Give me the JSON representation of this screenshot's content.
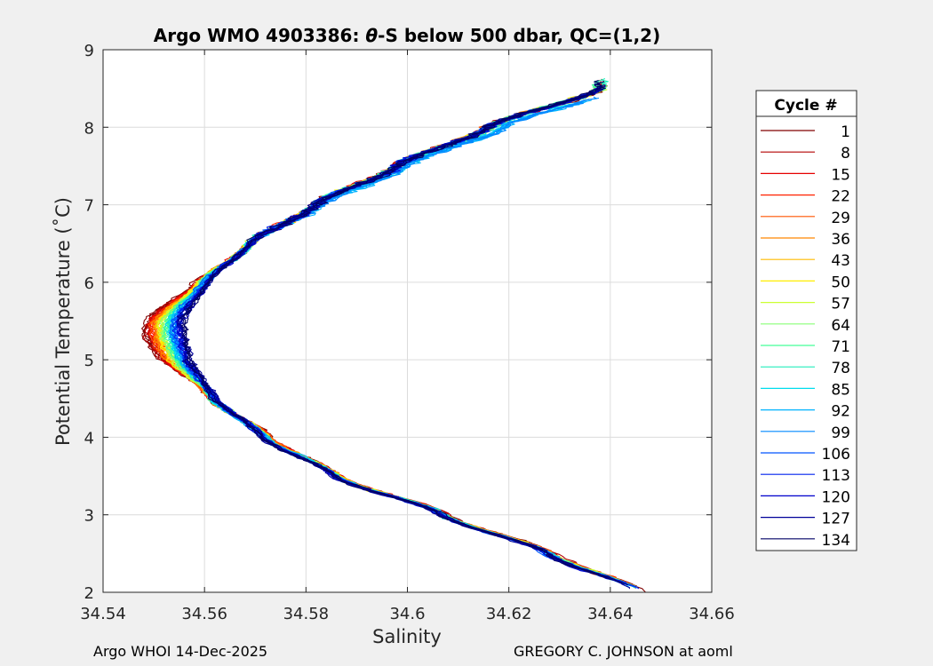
{
  "chart_data": {
    "type": "line",
    "title_prefix": "Argo WMO 4903386: ",
    "title_theta": "θ",
    "title_suffix": "-S below 500 dbar,  QC=(1,2)",
    "xlabel": "Salinity",
    "ylabel": "Potential Temperature (˚C)",
    "xlim": [
      34.54,
      34.66
    ],
    "ylim": [
      2,
      9
    ],
    "xticks": [
      34.54,
      34.56,
      34.58,
      34.6,
      34.62,
      34.64,
      34.66
    ],
    "xtick_labels": [
      "34.54",
      "34.56",
      "34.58",
      "34.6",
      "34.62",
      "34.64",
      "34.66"
    ],
    "yticks": [
      2,
      3,
      4,
      5,
      6,
      7,
      8,
      9
    ],
    "ytick_labels": [
      "2",
      "3",
      "4",
      "5",
      "6",
      "7",
      "8",
      "9"
    ],
    "grid": true,
    "legend": {
      "title": "Cycle #",
      "placement": "right-outside",
      "entries": [
        "1",
        "8",
        "15",
        "22",
        "29",
        "36",
        "43",
        "50",
        "57",
        "64",
        "71",
        "78",
        "85",
        "92",
        "99",
        "106",
        "113",
        "120",
        "127",
        "134"
      ],
      "colors": [
        "#800000",
        "#b30000",
        "#e60000",
        "#ff2200",
        "#ff5500",
        "#ff8800",
        "#ffbb00",
        "#ffee00",
        "#ccff33",
        "#88ff77",
        "#44ff99",
        "#22eebb",
        "#00ddee",
        "#00b3ff",
        "#0088ff",
        "#0055ff",
        "#0022ee",
        "#0000cc",
        "#000099",
        "#000066"
      ]
    },
    "series_shape": {
      "description_points": [
        {
          "T": 2.0,
          "S": 34.6465
        },
        {
          "T": 2.5,
          "S": 34.628
        },
        {
          "T": 3.0,
          "S": 34.607
        },
        {
          "T": 3.5,
          "S": 34.586
        },
        {
          "T": 4.0,
          "S": 34.572
        },
        {
          "T": 4.5,
          "S": 34.562
        },
        {
          "T": 5.0,
          "S": 34.557
        },
        {
          "T": 5.5,
          "S": 34.556
        },
        {
          "T": 6.0,
          "S": 34.5605
        },
        {
          "T": 6.5,
          "S": 34.569
        },
        {
          "T": 7.0,
          "S": 34.582
        },
        {
          "T": 7.5,
          "S": 34.598
        },
        {
          "T": 8.0,
          "S": 34.616
        },
        {
          "T": 8.5,
          "S": 34.638
        }
      ]
    }
  },
  "footer": {
    "left": "Argo WHOI 14-Dec-2025",
    "right": "GREGORY C. JOHNSON at aoml"
  }
}
